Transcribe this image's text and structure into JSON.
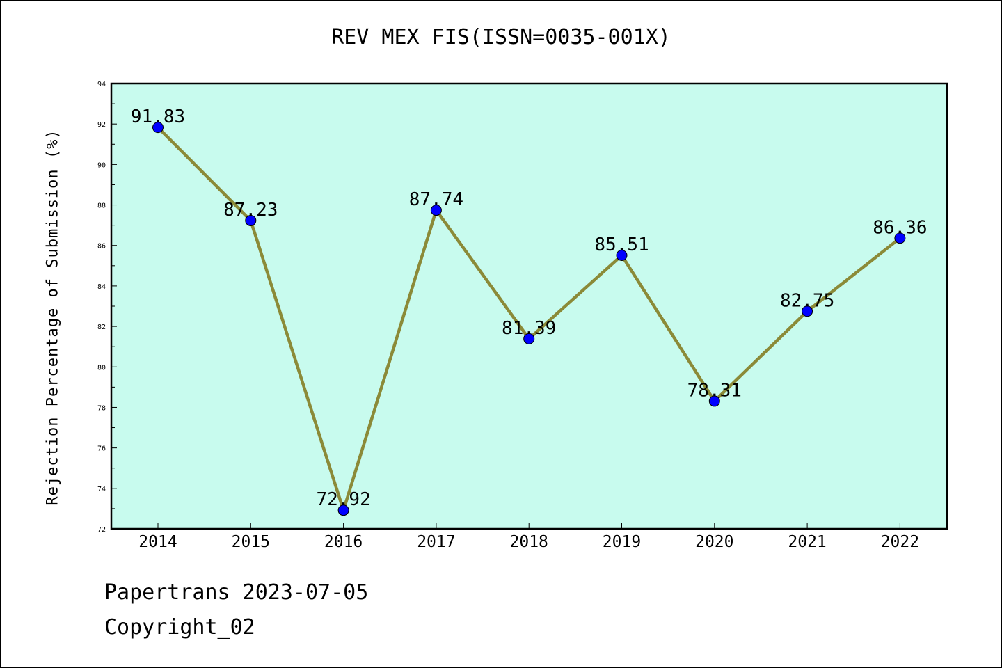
{
  "chart_data": {
    "type": "line",
    "title": "REV MEX FIS(ISSN=0035-001X)",
    "xlabel": "",
    "ylabel": "Rejection Percentage of Submission (%)",
    "categories": [
      "2014",
      "2015",
      "2016",
      "2017",
      "2018",
      "2019",
      "2020",
      "2021",
      "2022"
    ],
    "series": [
      {
        "values": [
          91.83,
          87.23,
          72.92,
          87.74,
          81.39,
          85.51,
          78.31,
          82.75,
          86.36
        ],
        "labels": [
          "91.83",
          "87.23",
          "72.92",
          "87.74",
          "81.39",
          "85.51",
          "78.31",
          "82.75",
          "86.36"
        ]
      }
    ],
    "ylim": [
      72,
      94
    ],
    "yticks": [
      "72",
      "74",
      "76",
      "78",
      "80",
      "82",
      "84",
      "86",
      "88",
      "90",
      "92",
      "94"
    ],
    "grid": false,
    "colors": {
      "plot_background": "#c8fbee",
      "line": "#8b8a38",
      "marker": "#0000ff"
    }
  },
  "footer": {
    "line1": "Papertrans 2023-07-05",
    "line2": "Copyright_02"
  }
}
